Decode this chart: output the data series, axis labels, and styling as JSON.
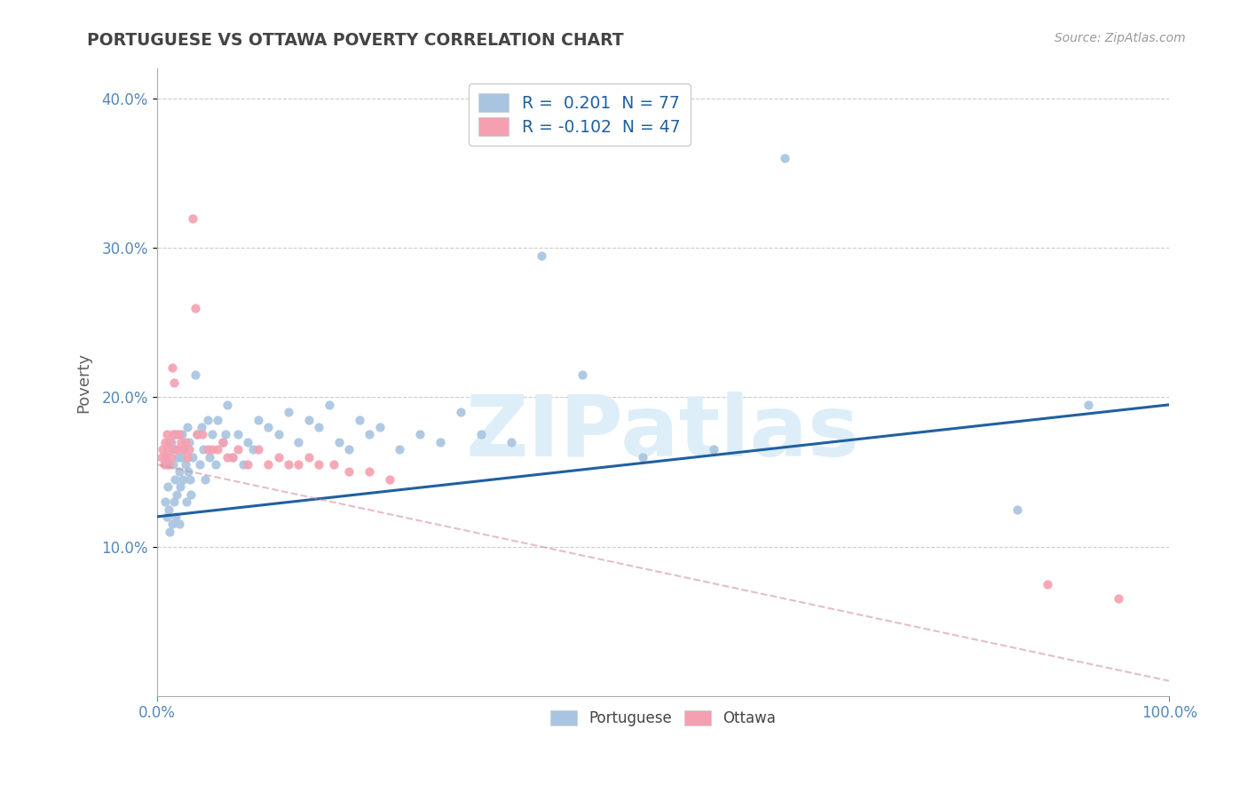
{
  "title": "PORTUGUESE VS OTTAWA POVERTY CORRELATION CHART",
  "source": "Source: ZipAtlas.com",
  "ylabel": "Poverty",
  "xlim": [
    0,
    1.0
  ],
  "ylim": [
    0,
    0.42
  ],
  "ytick_vals": [
    0.1,
    0.2,
    0.3,
    0.4
  ],
  "ytick_labels": [
    "10.0%",
    "20.0%",
    "30.0%",
    "40.0%"
  ],
  "R_portuguese": 0.201,
  "N_portuguese": 77,
  "R_ottawa": -0.102,
  "N_ottawa": 47,
  "portuguese_color": "#a8c4e0",
  "ottawa_color": "#f4a0b0",
  "trend_portuguese_color": "#2060a0",
  "trend_ottawa_color": "#d08898",
  "background_color": "#ffffff",
  "grid_color": "#cccccc",
  "watermark": "ZIPatlas",
  "watermark_color": "#ddeef8",
  "title_color": "#444444",
  "axis_label_color": "#606060",
  "tick_color": "#5588bb",
  "legend_color": "#2060a0",
  "portuguese_x": [
    0.008,
    0.009,
    0.01,
    0.01,
    0.011,
    0.012,
    0.013,
    0.014,
    0.015,
    0.015,
    0.016,
    0.017,
    0.018,
    0.019,
    0.02,
    0.02,
    0.021,
    0.022,
    0.022,
    0.023,
    0.024,
    0.025,
    0.026,
    0.027,
    0.028,
    0.029,
    0.03,
    0.031,
    0.032,
    0.033,
    0.034,
    0.035,
    0.038,
    0.04,
    0.042,
    0.044,
    0.046,
    0.048,
    0.05,
    0.052,
    0.055,
    0.058,
    0.06,
    0.065,
    0.068,
    0.07,
    0.075,
    0.08,
    0.085,
    0.09,
    0.095,
    0.1,
    0.11,
    0.12,
    0.13,
    0.14,
    0.15,
    0.16,
    0.17,
    0.18,
    0.19,
    0.2,
    0.21,
    0.22,
    0.24,
    0.26,
    0.28,
    0.3,
    0.32,
    0.35,
    0.38,
    0.42,
    0.48,
    0.55,
    0.62,
    0.85,
    0.92
  ],
  "portuguese_y": [
    0.13,
    0.16,
    0.155,
    0.12,
    0.14,
    0.125,
    0.11,
    0.17,
    0.165,
    0.115,
    0.155,
    0.13,
    0.145,
    0.12,
    0.175,
    0.135,
    0.16,
    0.15,
    0.115,
    0.14,
    0.16,
    0.175,
    0.145,
    0.165,
    0.155,
    0.13,
    0.18,
    0.15,
    0.17,
    0.145,
    0.135,
    0.16,
    0.215,
    0.175,
    0.155,
    0.18,
    0.165,
    0.145,
    0.185,
    0.16,
    0.175,
    0.155,
    0.185,
    0.17,
    0.175,
    0.195,
    0.16,
    0.175,
    0.155,
    0.17,
    0.165,
    0.185,
    0.18,
    0.175,
    0.19,
    0.17,
    0.185,
    0.18,
    0.195,
    0.17,
    0.165,
    0.185,
    0.175,
    0.18,
    0.165,
    0.175,
    0.17,
    0.19,
    0.175,
    0.17,
    0.295,
    0.215,
    0.16,
    0.165,
    0.36,
    0.125,
    0.195
  ],
  "ottawa_x": [
    0.005,
    0.006,
    0.007,
    0.008,
    0.009,
    0.01,
    0.011,
    0.012,
    0.013,
    0.014,
    0.015,
    0.016,
    0.017,
    0.018,
    0.019,
    0.02,
    0.022,
    0.024,
    0.026,
    0.028,
    0.03,
    0.032,
    0.035,
    0.038,
    0.04,
    0.045,
    0.05,
    0.055,
    0.06,
    0.065,
    0.07,
    0.075,
    0.08,
    0.09,
    0.1,
    0.11,
    0.12,
    0.13,
    0.14,
    0.15,
    0.16,
    0.175,
    0.19,
    0.21,
    0.23,
    0.88,
    0.95
  ],
  "ottawa_y": [
    0.16,
    0.165,
    0.155,
    0.17,
    0.16,
    0.175,
    0.165,
    0.155,
    0.17,
    0.16,
    0.22,
    0.175,
    0.21,
    0.175,
    0.165,
    0.165,
    0.175,
    0.17,
    0.165,
    0.17,
    0.16,
    0.165,
    0.32,
    0.26,
    0.175,
    0.175,
    0.165,
    0.165,
    0.165,
    0.17,
    0.16,
    0.16,
    0.165,
    0.155,
    0.165,
    0.155,
    0.16,
    0.155,
    0.155,
    0.16,
    0.155,
    0.155,
    0.15,
    0.15,
    0.145,
    0.075,
    0.065
  ],
  "trend_p_x0": 0.0,
  "trend_p_y0": 0.12,
  "trend_p_x1": 1.0,
  "trend_p_y1": 0.195,
  "trend_o_x0": 0.0,
  "trend_o_y0": 0.155,
  "trend_o_x1": 1.0,
  "trend_o_y1": 0.01
}
